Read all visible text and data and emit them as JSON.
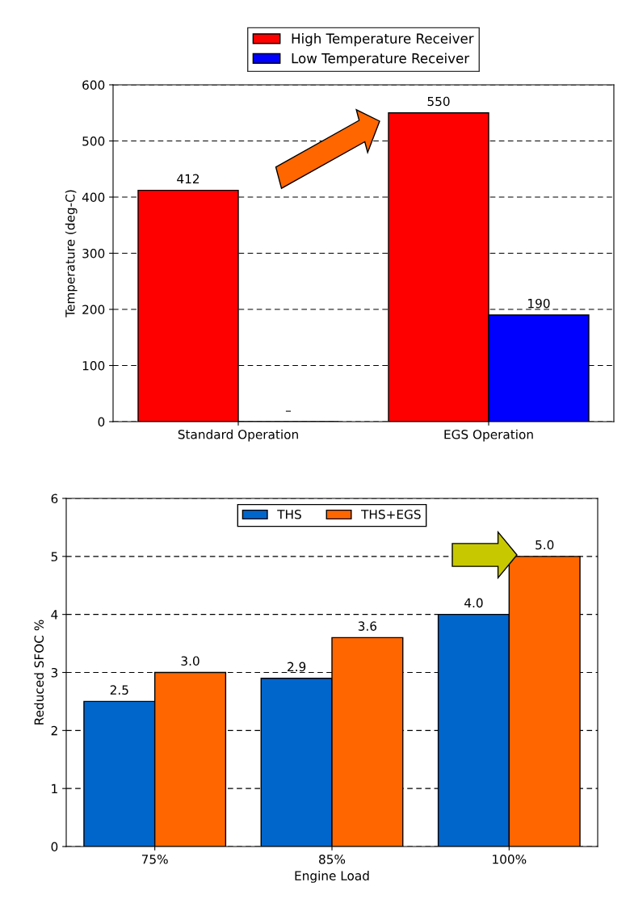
{
  "chart_data": [
    {
      "type": "bar",
      "categories": [
        "Standard Operation",
        "EGS Operation"
      ],
      "ylabel": "Temperature (deg-C)",
      "series": [
        {
          "name": "High Temperature Receiver",
          "color": "#ff0000",
          "values": [
            412,
            550
          ],
          "value_labels": [
            "412",
            "550"
          ]
        },
        {
          "name": "Low Temperature Receiver",
          "color": "#0000ff",
          "values": [
            null,
            190
          ],
          "value_labels": [
            "–",
            "190"
          ]
        }
      ],
      "ylim": [
        0,
        600
      ],
      "yticks": [
        0,
        100,
        200,
        300,
        400,
        500,
        600
      ],
      "grid": "y",
      "legend": "top"
    },
    {
      "type": "bar",
      "categories": [
        "75%",
        "85%",
        "100%"
      ],
      "xlabel": "Engine Load",
      "ylabel": "Reduced SFOC %",
      "series": [
        {
          "name": "THS",
          "color": "#0066cc",
          "values": [
            2.5,
            2.9,
            4.0
          ],
          "value_labels": [
            "2.5",
            "2.9",
            "4.0"
          ]
        },
        {
          "name": "THS+EGS",
          "color": "#ff6600",
          "values": [
            3.0,
            3.6,
            5.0
          ],
          "value_labels": [
            "3.0",
            "3.6",
            "5.0"
          ]
        }
      ],
      "ylim": [
        0,
        6
      ],
      "yticks": [
        0,
        1,
        2,
        3,
        4,
        5,
        6
      ],
      "grid": "y",
      "legend": "top"
    }
  ]
}
